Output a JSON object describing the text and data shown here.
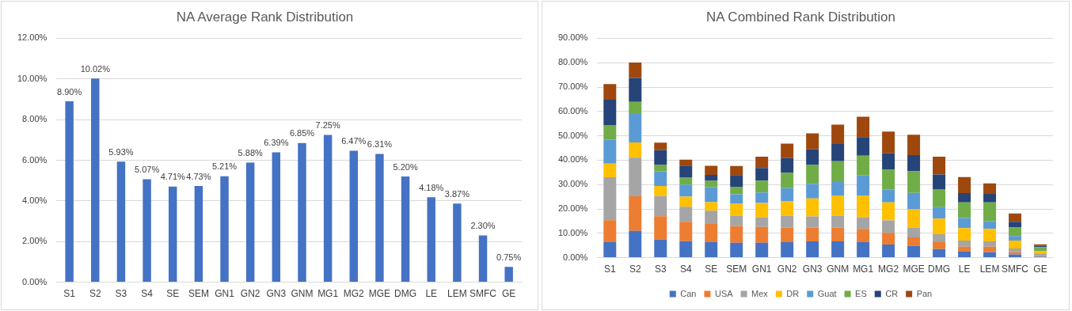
{
  "chart_data": [
    {
      "type": "bar",
      "title": "NA Average Rank Distribution",
      "categories": [
        "S1",
        "S2",
        "S3",
        "S4",
        "SE",
        "SEM",
        "GN1",
        "GN2",
        "GN3",
        "GNM",
        "MG1",
        "MG2",
        "MGE",
        "DMG",
        "LE",
        "LEM",
        "SMFC",
        "GE"
      ],
      "values": [
        8.9,
        10.02,
        5.93,
        5.07,
        4.71,
        4.73,
        5.21,
        5.88,
        6.39,
        6.85,
        7.25,
        6.47,
        6.31,
        5.2,
        4.18,
        3.87,
        2.3,
        0.75
      ],
      "value_labels": [
        "8.90%",
        "10.02%",
        "5.93%",
        "5.07%",
        "4.71%",
        "4.73%",
        "5.21%",
        "5.88%",
        "6.39%",
        "6.85%",
        "7.25%",
        "6.47%",
        "6.31%",
        "5.20%",
        "4.18%",
        "3.87%",
        "2.30%",
        "0.75%"
      ],
      "color": "#4472c4",
      "ylim": [
        0,
        12
      ],
      "yticks": [
        {
          "value": 0,
          "label": "0.00%"
        },
        {
          "value": 2,
          "label": "2.00%"
        },
        {
          "value": 4,
          "label": "4.00%"
        },
        {
          "value": 6,
          "label": "6.00%"
        },
        {
          "value": 8,
          "label": "8.00%"
        },
        {
          "value": 10,
          "label": "10.00%"
        },
        {
          "value": 12,
          "label": "12.00%"
        }
      ],
      "grid": "y",
      "legend": false
    },
    {
      "type": "bar",
      "title": "NA Combined Rank Distribution",
      "stacked": true,
      "categories": [
        "S1",
        "S2",
        "S3",
        "S4",
        "SE",
        "SEM",
        "GN1",
        "GN2",
        "GN3",
        "GNM",
        "MG1",
        "MG2",
        "MGE",
        "DMG",
        "LE",
        "LEM",
        "SMFC",
        "GE"
      ],
      "series": [
        {
          "name": "Can",
          "color": "#4472c4",
          "values": [
            6.4,
            11.0,
            7.4,
            6.8,
            6.4,
            6.1,
            6.1,
            6.4,
            6.7,
            6.7,
            6.4,
            5.4,
            4.8,
            3.5,
            2.6,
            2.2,
            1.3,
            0.4
          ]
        },
        {
          "name": "USA",
          "color": "#ed7d31",
          "values": [
            9.0,
            14.2,
            9.6,
            7.9,
            7.4,
            6.8,
            6.5,
            6.0,
            5.7,
            5.7,
            5.4,
            4.8,
            3.5,
            2.9,
            1.9,
            2.3,
            0.9,
            0.3
          ]
        },
        {
          "name": "Mex",
          "color": "#a5a5a5",
          "values": [
            17.6,
            15.8,
            8.3,
            6.2,
            5.5,
            4.3,
            4.0,
            4.8,
            4.5,
            4.8,
            4.8,
            5.1,
            4.1,
            3.2,
            2.5,
            2.2,
            1.6,
            0.8
          ]
        },
        {
          "name": "DR",
          "color": "#ffc000",
          "values": [
            5.6,
            6.3,
            4.1,
            4.1,
            3.5,
            4.9,
            5.8,
            5.9,
            7.4,
            8.3,
            8.9,
            7.4,
            7.4,
            6.4,
            5.1,
            5.1,
            3.2,
            1.1
          ]
        },
        {
          "name": "Guat",
          "color": "#5b9bd5",
          "values": [
            9.8,
            12.0,
            6.0,
            5.0,
            6.1,
            3.9,
            4.3,
            5.4,
            6.0,
            5.5,
            8.2,
            5.2,
            6.8,
            4.7,
            4.2,
            3.2,
            1.9,
            null
          ]
        },
        {
          "name": "ES",
          "color": "#70ad47",
          "values": [
            6.0,
            4.6,
            2.6,
            3.0,
            2.6,
            3.1,
            4.9,
            6.3,
            7.7,
            8.6,
            8.1,
            8.2,
            8.8,
            7.4,
            6.4,
            7.7,
            3.5,
            1.7
          ]
        },
        {
          "name": "CR",
          "color": "#264478",
          "values": [
            10.4,
            9.8,
            6.1,
            4.8,
            2.5,
            4.8,
            5.2,
            6.1,
            6.4,
            7.0,
            7.7,
            6.7,
            6.7,
            6.0,
            3.8,
            3.5,
            2.3,
            0.6
          ]
        },
        {
          "name": "Pan",
          "color": "#9e480e",
          "values": [
            6.4,
            6.4,
            3.1,
            2.4,
            3.7,
            3.7,
            4.6,
            5.9,
            6.6,
            8.0,
            8.3,
            8.9,
            8.3,
            7.3,
            6.6,
            4.3,
            3.4,
            0.6
          ]
        }
      ],
      "ylim": [
        0,
        90
      ],
      "yticks": [
        {
          "value": 0,
          "label": "0.00%"
        },
        {
          "value": 10,
          "label": "10.00%"
        },
        {
          "value": 20,
          "label": "20.00%"
        },
        {
          "value": 30,
          "label": "30.00%"
        },
        {
          "value": 40,
          "label": "40.00%"
        },
        {
          "value": 50,
          "label": "50.00%"
        },
        {
          "value": 60,
          "label": "60.00%"
        },
        {
          "value": 70,
          "label": "70.00%"
        },
        {
          "value": 80,
          "label": "80.00%"
        },
        {
          "value": 90,
          "label": "90.00%"
        }
      ],
      "grid": "y",
      "legend": "bottom"
    }
  ]
}
